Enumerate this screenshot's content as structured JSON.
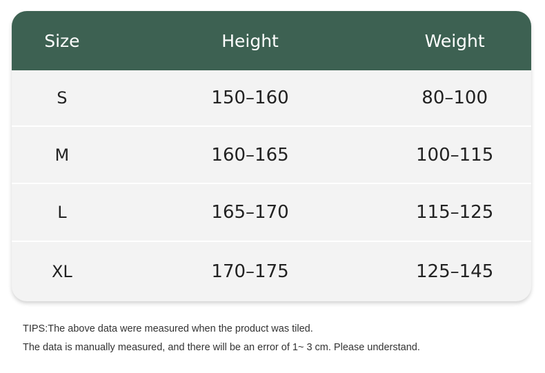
{
  "table": {
    "headers": [
      "Size",
      "Height",
      "Weight"
    ],
    "rows": [
      [
        "S",
        "150–160",
        "80–100"
      ],
      [
        "M",
        "160–165",
        "100–115"
      ],
      [
        "L",
        "165–170",
        "115–125"
      ],
      [
        "XL",
        "170–175",
        "125–145"
      ]
    ],
    "header_color": "#3d6152",
    "row_color": "#f3f3f3"
  },
  "tips": [
    "TIPS:The above data were measured when the product was tiled.",
    "The data is manually measured, and there will be an error of 1~ 3 cm. Please understand."
  ]
}
